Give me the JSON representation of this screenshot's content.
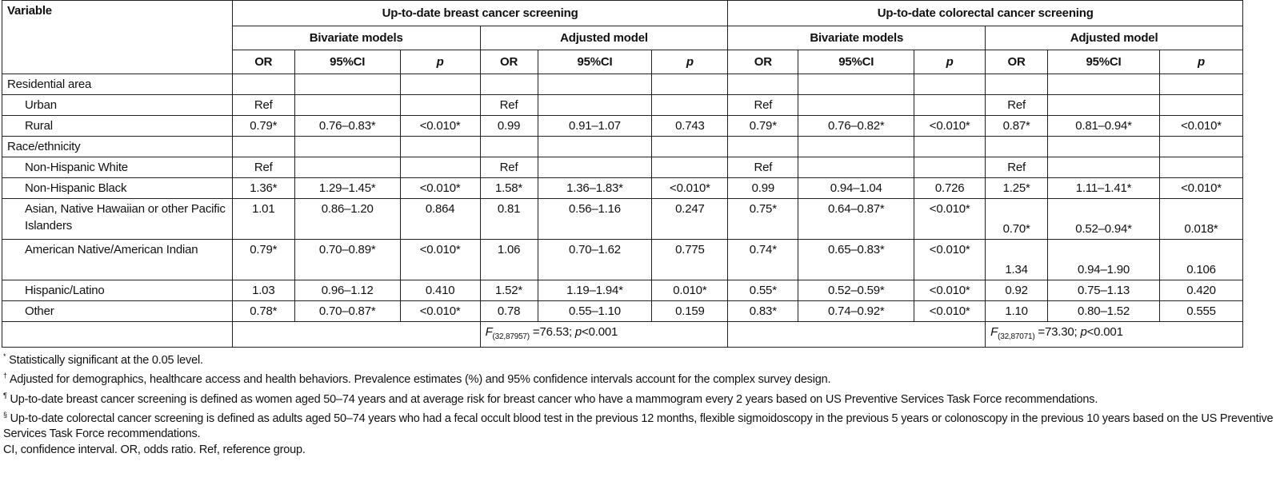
{
  "header": {
    "variable": "Variable",
    "groups": [
      "Up-to-date breast cancer screening",
      "Up-to-date colorectal cancer screening"
    ],
    "models": [
      "Bivariate models",
      "Adjusted model",
      "Bivariate models",
      "Adjusted model"
    ],
    "cols": [
      "OR",
      "95%CI",
      "p"
    ]
  },
  "rows": [
    {
      "label": "Residential area",
      "indent": false,
      "cells": [
        "",
        "",
        "",
        "",
        "",
        "",
        "",
        "",
        "",
        "",
        "",
        ""
      ]
    },
    {
      "label": "Urban",
      "indent": true,
      "cells": [
        "Ref",
        "",
        "",
        "Ref",
        "",
        "",
        "Ref",
        "",
        "",
        "Ref",
        "",
        ""
      ]
    },
    {
      "label": "Rural",
      "indent": true,
      "cells": [
        "0.79*",
        "0.76–0.83*",
        "<0.010*",
        "0.99",
        "0.91–1.07",
        "0.743",
        "0.79*",
        "0.76–0.82*",
        "<0.010*",
        "0.87*",
        "0.81–0.94*",
        "<0.010*"
      ]
    },
    {
      "label": "Race/ethnicity",
      "indent": false,
      "cells": [
        "",
        "",
        "",
        "",
        "",
        "",
        "",
        "",
        "",
        "",
        "",
        ""
      ]
    },
    {
      "label": "Non-Hispanic White",
      "indent": true,
      "cells": [
        "Ref",
        "",
        "",
        "Ref",
        "",
        "",
        "Ref",
        "",
        "",
        "Ref",
        "",
        ""
      ]
    },
    {
      "label": "Non-Hispanic Black",
      "indent": true,
      "cells": [
        "1.36*",
        "1.29–1.45*",
        "<0.010*",
        "1.58*",
        "1.36–1.83*",
        "<0.010*",
        "0.99",
        "0.94–1.04",
        "0.726",
        "1.25*",
        "1.11–1.41*",
        "<0.010*"
      ]
    },
    {
      "label": "Asian, Native Hawaiian or other Pacific Islanders",
      "indent": true,
      "tall": true,
      "cells": [
        "1.01",
        "0.86–1.20",
        "0.864",
        "0.81",
        "0.56–1.16",
        "0.247",
        "0.75*",
        "0.64–0.87*",
        "<0.010*",
        "0.70*",
        "0.52–0.94*",
        "0.018*"
      ]
    },
    {
      "label": "American Native/American Indian",
      "indent": true,
      "tall": true,
      "cells": [
        "0.79*",
        "0.70–0.89*",
        "<0.010*",
        "1.06",
        "0.70–1.62",
        "0.775",
        "0.74*",
        "0.65–0.83*",
        "<0.010*",
        "1.34",
        "0.94–1.90",
        "0.106"
      ]
    },
    {
      "label": "Hispanic/Latino",
      "indent": true,
      "cells": [
        "1.03",
        "0.96–1.12",
        "0.410",
        "1.52*",
        "1.19–1.94*",
        "0.010*",
        "0.55*",
        "0.52–0.59*",
        "<0.010*",
        "0.92",
        "0.75–1.13",
        "0.420"
      ]
    },
    {
      "label": "Other",
      "indent": true,
      "cells": [
        "0.78*",
        "0.70–0.87*",
        "<0.010*",
        "0.78",
        "0.55–1.10",
        "0.159",
        "0.83*",
        "0.74–0.92*",
        "<0.010*",
        "1.10",
        "0.80–1.52",
        "0.555"
      ]
    }
  ],
  "fstats": [
    {
      "f": "F",
      "df": "(32,87957)",
      "rest": " =76.53; ",
      "p": "p",
      "pval": "<0.001"
    },
    {
      "f": "F",
      "df": "(32,87071)",
      "rest": " =73.30; ",
      "p": "p",
      "pval": "<0.001"
    }
  ],
  "footnotes": [
    {
      "sym": "*",
      "text": " Statistically significant at the 0.05 level."
    },
    {
      "sym": "†",
      "text": " Adjusted for demographics, healthcare access and health behaviors. Prevalence estimates (%) and 95% confidence intervals account for the complex survey design."
    },
    {
      "sym": "¶",
      "text": " Up-to-date breast cancer screening is defined as women aged 50–74 years and at average risk for breast cancer who have a mammogram every 2 years based on US Preventive Services Task Force recommendations."
    },
    {
      "sym": "§",
      "text": " Up-to-date colorectal cancer screening is defined as adults aged 50–74 years who had a fecal occult blood test in the previous 12 months, flexible sigmoidoscopy in the previous 5 years or colonoscopy in the previous 10 years based on the US Preventive Services Task Force recommendations."
    },
    {
      "sym": "",
      "text": "CI, confidence interval. OR, odds ratio. Ref, reference group."
    }
  ]
}
